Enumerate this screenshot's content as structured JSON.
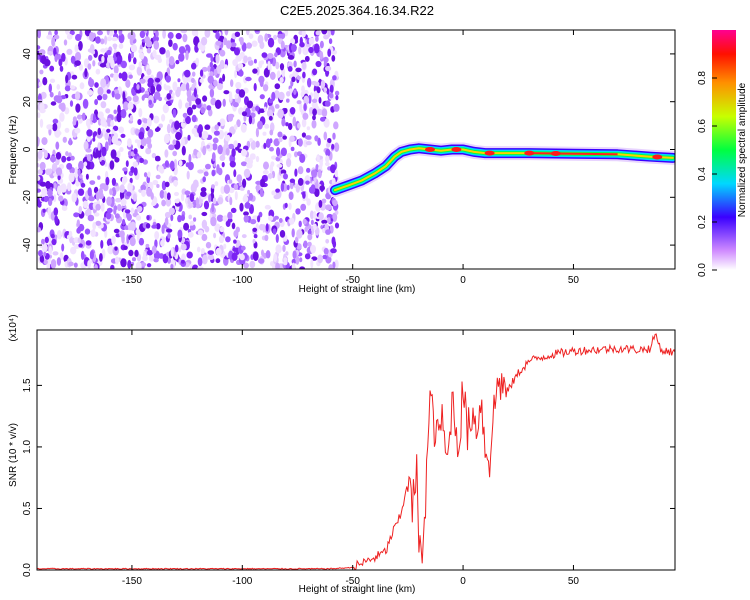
{
  "title": "C2E5.2025.364.16.34.R22",
  "chart_data": [
    {
      "type": "heatmap",
      "xlabel": "Height of straight line (km)",
      "ylabel": "Frequency (Hz)",
      "xlim": [
        -193,
        96
      ],
      "ylim": [
        -50,
        50
      ],
      "xticks": [
        -150,
        -100,
        -50,
        0,
        50
      ],
      "yticks": [
        -40,
        -20,
        0,
        20,
        40
      ],
      "noise_region_end_km": -57,
      "signal_track": {
        "x": [
          -58,
          -52,
          -46,
          -40,
          -35,
          -31,
          -28,
          -24,
          -20,
          -15,
          -10,
          -5,
          0,
          5,
          10,
          20,
          30,
          50,
          70,
          85,
          95
        ],
        "freq_hz": [
          -17,
          -15,
          -13,
          -10,
          -7,
          -3,
          -1,
          0,
          0.5,
          0,
          -0.5,
          0,
          0,
          -1,
          -1.5,
          -1.5,
          -1.5,
          -1.8,
          -2,
          -3,
          -3.5
        ]
      },
      "hot_spots_x": [
        -15,
        -3,
        12,
        30,
        42,
        88
      ],
      "colorbar": {
        "label": "Normalized spectral amplitude",
        "range": [
          0.0,
          1.0
        ],
        "ticks": [
          0.0,
          0.2,
          0.4,
          0.6,
          0.8
        ]
      }
    },
    {
      "type": "line",
      "xlabel": "Height of straight line (km)",
      "ylabel": "SNR (10 * v/v)",
      "y_multiplier": "(x10⁴)",
      "xlim": [
        -193,
        96
      ],
      "ylim": [
        0,
        1.95
      ],
      "xticks": [
        -150,
        -100,
        -50,
        0,
        50
      ],
      "yticks": [
        0.0,
        0.5,
        1.0,
        1.5
      ],
      "series": [
        {
          "name": "SNR",
          "color": "#ee2222",
          "x": [
            -193,
            -150,
            -100,
            -60,
            -50,
            -45,
            -40,
            -35,
            -32,
            -28,
            -25,
            -23,
            -21,
            -20,
            -19,
            -17,
            -15,
            -12,
            -10,
            -7,
            -5,
            -2,
            0,
            2,
            4,
            6,
            8,
            10,
            12,
            14,
            16,
            20,
            25,
            30,
            40,
            50,
            60,
            70,
            80,
            85,
            87,
            90,
            96
          ],
          "y": [
            0.01,
            0.01,
            0.01,
            0.01,
            0.02,
            0.06,
            0.1,
            0.15,
            0.3,
            0.45,
            0.75,
            0.5,
            0.8,
            0.2,
            0.05,
            0.6,
            1.4,
            1.05,
            1.25,
            0.85,
            1.4,
            1.0,
            1.5,
            1.1,
            1.3,
            1.15,
            1.4,
            1.0,
            0.9,
            1.3,
            1.55,
            1.45,
            1.6,
            1.7,
            1.75,
            1.78,
            1.79,
            1.8,
            1.79,
            1.8,
            1.92,
            1.78,
            1.77
          ]
        }
      ]
    }
  ]
}
